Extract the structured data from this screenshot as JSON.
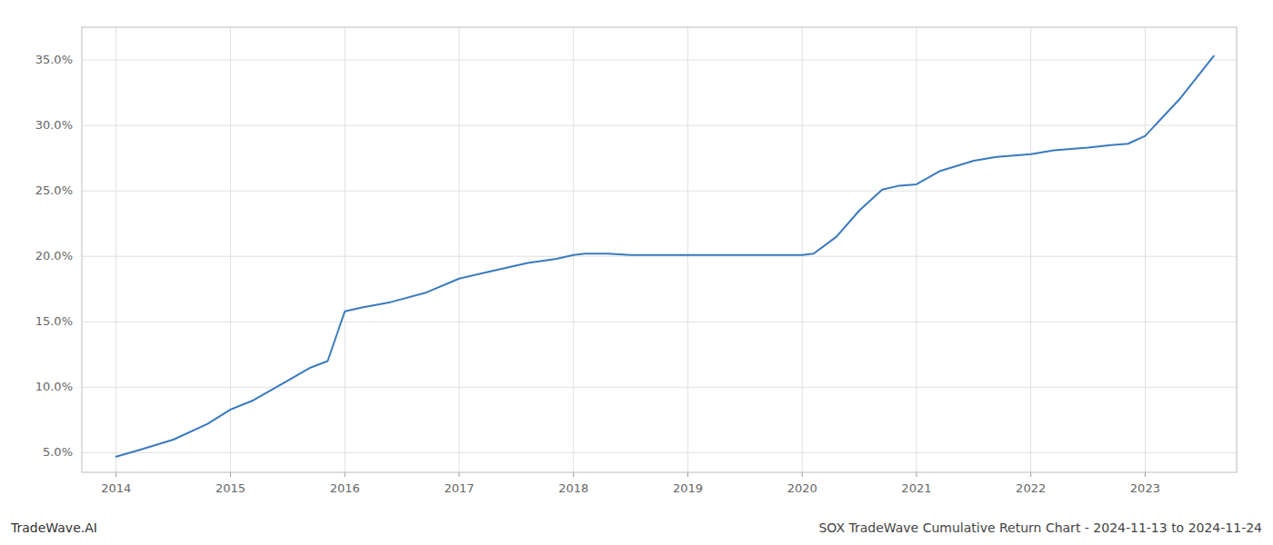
{
  "chart_data": {
    "type": "line",
    "title": "SOX TradeWave Cumulative Return Chart - 2024-11-13 to 2024-11-24",
    "annotations": [
      "TradeWave.AI"
    ],
    "color": "#3a7abf",
    "x": [
      2014.0,
      2014.2,
      2014.5,
      2014.8,
      2015.0,
      2015.2,
      2015.5,
      2015.7,
      2015.85,
      2016.0,
      2016.15,
      2016.4,
      2016.7,
      2017.0,
      2017.3,
      2017.6,
      2017.85,
      2018.0,
      2018.1,
      2018.3,
      2018.5,
      2018.7,
      2019.0,
      2019.3,
      2019.6,
      2019.85,
      2020.0,
      2020.1,
      2020.3,
      2020.5,
      2020.7,
      2020.85,
      2021.0,
      2021.2,
      2021.5,
      2021.7,
      2022.0,
      2022.2,
      2022.5,
      2022.7,
      2022.85,
      2023.0,
      2023.3,
      2023.6
    ],
    "values": [
      4.7,
      5.2,
      6.0,
      7.2,
      8.3,
      9.0,
      10.5,
      11.5,
      12.0,
      15.8,
      16.1,
      16.5,
      17.2,
      18.3,
      18.9,
      19.5,
      19.8,
      20.1,
      20.2,
      20.2,
      20.1,
      20.1,
      20.1,
      20.1,
      20.1,
      20.1,
      20.1,
      20.2,
      21.5,
      23.5,
      25.1,
      25.4,
      25.5,
      26.5,
      27.3,
      27.6,
      27.8,
      28.1,
      28.3,
      28.5,
      28.6,
      29.2,
      32.0,
      35.3
    ],
    "xlim": [
      2013.7,
      2023.8
    ],
    "ylim": [
      3.5,
      37.5
    ],
    "xticks": [
      2014,
      2015,
      2016,
      2017,
      2018,
      2019,
      2020,
      2021,
      2022,
      2023
    ],
    "yticks": [
      {
        "value": 5.0,
        "label": "5.0%"
      },
      {
        "value": 10.0,
        "label": "10.0%"
      },
      {
        "value": 15.0,
        "label": "15.0%"
      },
      {
        "value": 20.0,
        "label": "20.0%"
      },
      {
        "value": 25.0,
        "label": "25.0%"
      },
      {
        "value": 30.0,
        "label": "30.0%"
      },
      {
        "value": 35.0,
        "label": "35.0%"
      }
    ],
    "grid": true
  }
}
